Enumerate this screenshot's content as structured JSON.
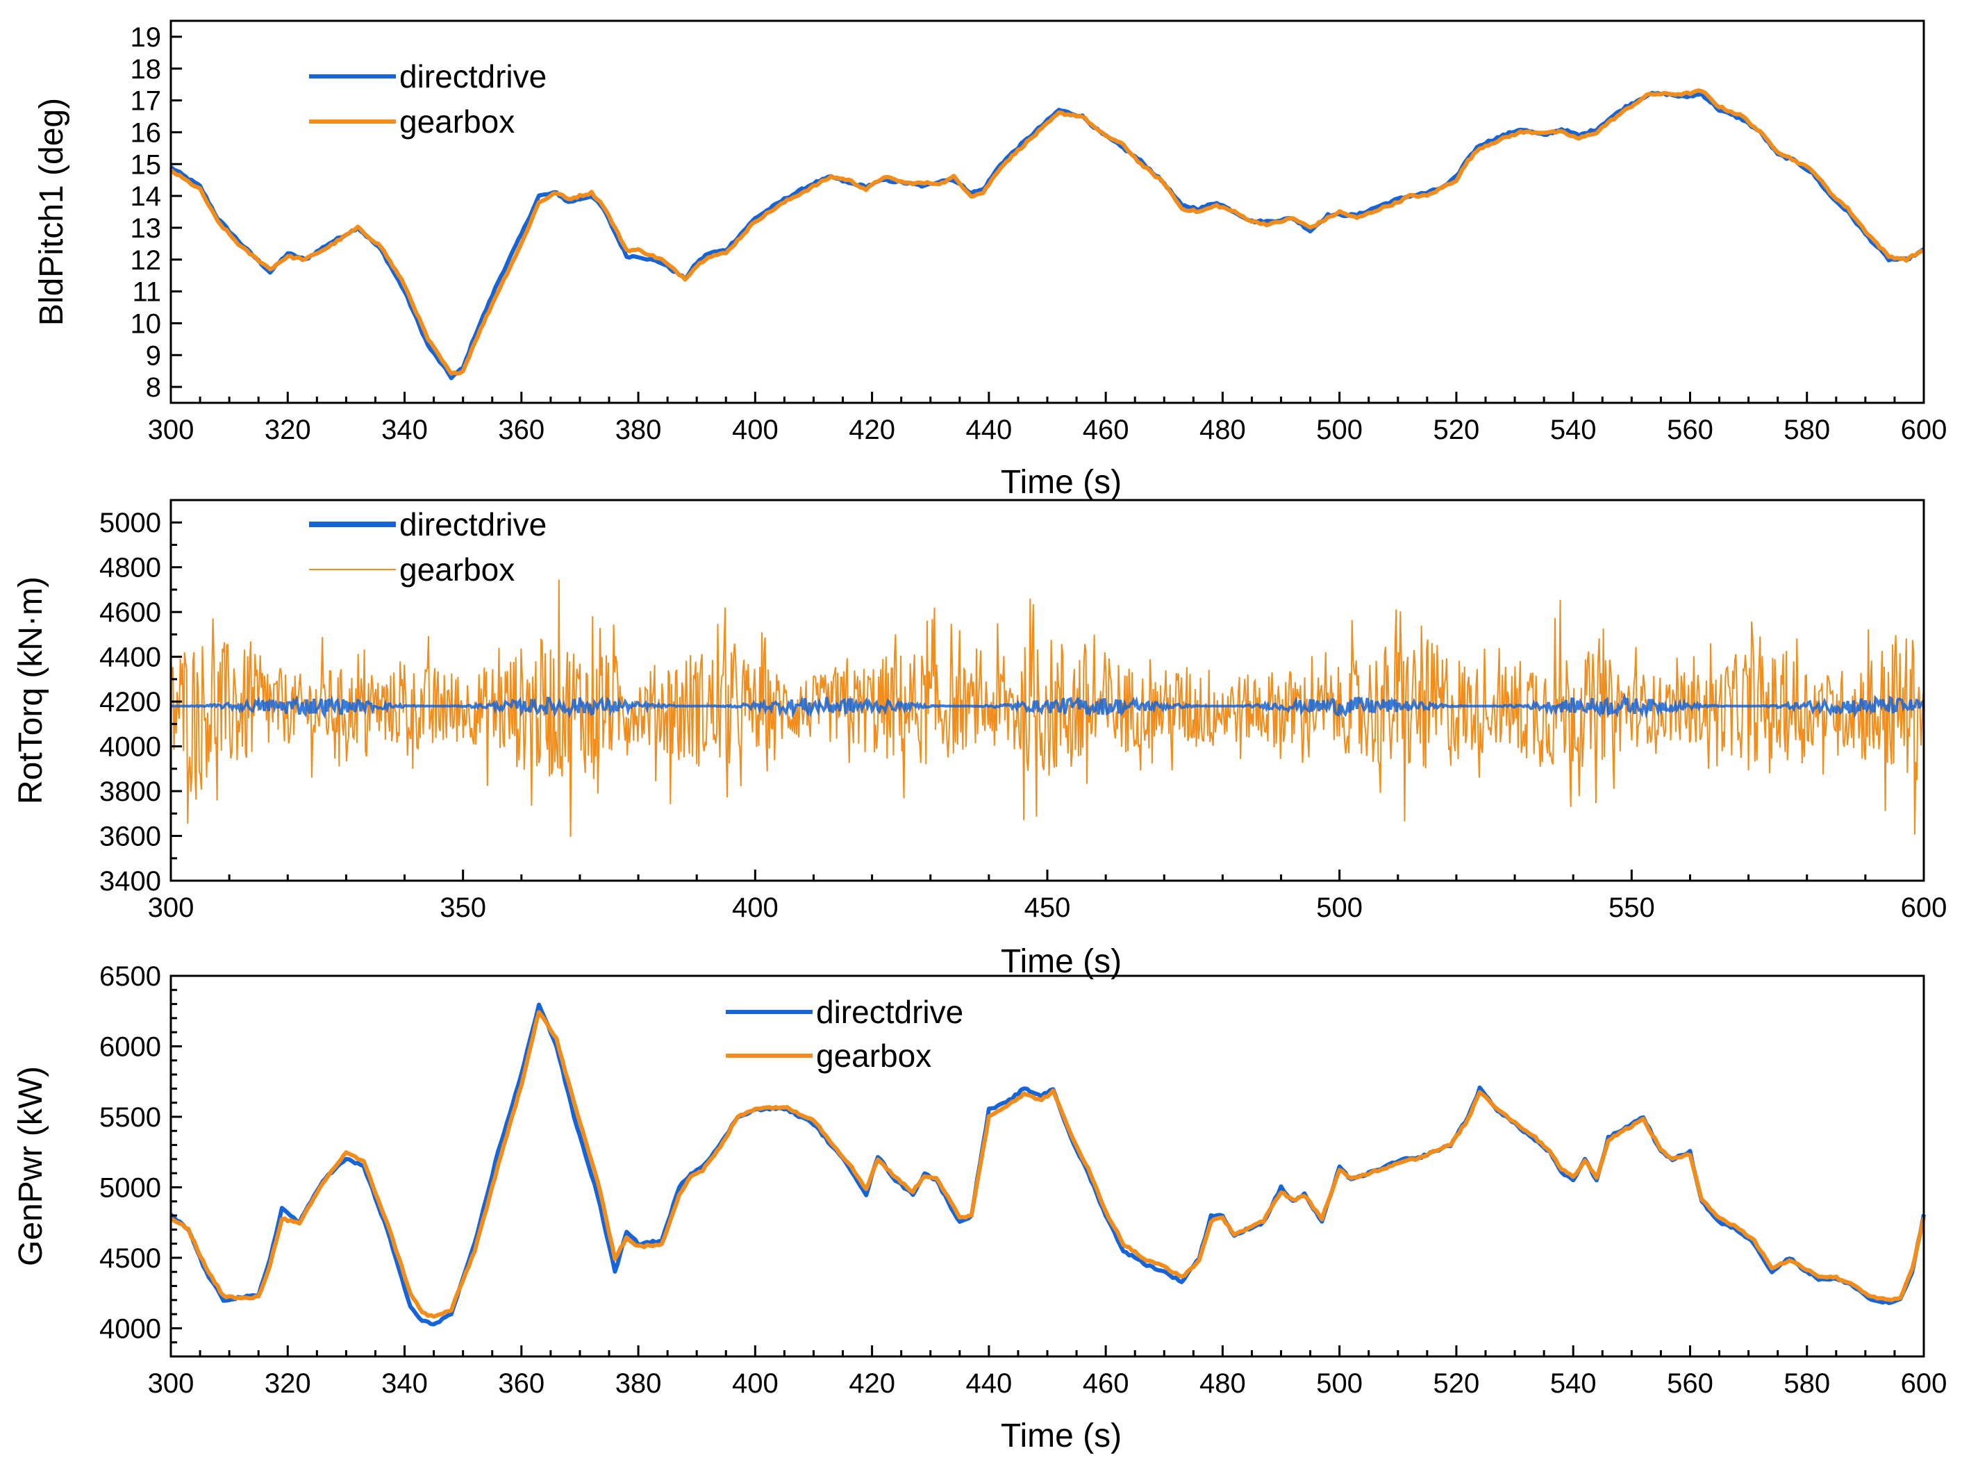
{
  "colors": {
    "directdrive": "#1565D8",
    "gearbox": "#F28C1A",
    "axis": "#000000"
  },
  "chart_data": [
    {
      "type": "line",
      "ylabel": "BldPitch1 (deg)",
      "xlabel": "Time (s)",
      "xlim": [
        300,
        600
      ],
      "ylim": [
        7.5,
        19.5
      ],
      "xticks": [
        300,
        320,
        340,
        360,
        380,
        400,
        420,
        440,
        460,
        480,
        500,
        520,
        540,
        560,
        580,
        600
      ],
      "xminor": 5,
      "yticks": [
        8,
        9,
        10,
        11,
        12,
        13,
        14,
        15,
        16,
        17,
        18,
        19
      ],
      "yminor": null,
      "legend": [
        "directdrive",
        "gearbox"
      ],
      "legend_position": "top-left",
      "series": [
        {
          "name": "directdrive",
          "x": [
            300,
            305,
            308,
            312,
            317,
            320,
            323,
            327,
            332,
            336,
            340,
            344,
            348,
            350,
            352,
            356,
            360,
            363,
            366,
            368,
            372,
            374,
            378,
            380,
            384,
            388,
            390,
            392,
            395,
            397,
            400,
            405,
            410,
            413,
            416,
            419,
            422,
            426,
            429,
            432,
            434,
            437,
            439,
            442,
            446,
            449,
            452,
            456,
            459,
            463,
            466,
            470,
            473,
            476,
            479,
            482,
            485,
            488,
            492,
            495,
            498,
            500,
            503,
            507,
            510,
            512,
            515,
            518,
            520,
            522,
            524,
            528,
            531,
            535,
            538,
            541,
            544,
            546,
            549,
            553,
            556,
            559,
            562,
            565,
            569,
            572,
            575,
            578,
            581,
            584,
            587,
            590,
            594,
            597,
            600
          ],
          "y": [
            14.9,
            14.3,
            13.3,
            12.5,
            11.6,
            12.2,
            12.0,
            12.5,
            13.0,
            12.3,
            11.0,
            9.3,
            8.3,
            8.6,
            9.6,
            11.3,
            12.8,
            14.0,
            14.1,
            13.8,
            14.0,
            13.6,
            12.1,
            12.1,
            11.9,
            11.4,
            11.9,
            12.2,
            12.3,
            12.7,
            13.3,
            13.9,
            14.4,
            14.6,
            14.4,
            14.3,
            14.5,
            14.4,
            14.3,
            14.5,
            14.5,
            14.1,
            14.2,
            15.0,
            15.7,
            16.2,
            16.7,
            16.5,
            16.0,
            15.5,
            15.1,
            14.4,
            13.7,
            13.6,
            13.8,
            13.5,
            13.2,
            13.2,
            13.3,
            12.9,
            13.4,
            13.4,
            13.4,
            13.7,
            13.9,
            14.0,
            14.1,
            14.3,
            14.6,
            15.2,
            15.6,
            15.9,
            16.1,
            15.9,
            16.1,
            15.9,
            16.1,
            16.4,
            16.8,
            17.2,
            17.2,
            17.1,
            17.2,
            16.7,
            16.4,
            16.0,
            15.3,
            15.1,
            14.7,
            14.0,
            13.5,
            12.8,
            12.0,
            12.0,
            12.3
          ]
        },
        {
          "name": "gearbox",
          "x": [
            300,
            305,
            308,
            312,
            317,
            320,
            323,
            327,
            332,
            336,
            340,
            344,
            348,
            350,
            352,
            356,
            360,
            363,
            366,
            368,
            372,
            374,
            378,
            380,
            384,
            388,
            390,
            392,
            395,
            397,
            400,
            405,
            410,
            413,
            416,
            419,
            422,
            426,
            429,
            432,
            434,
            437,
            439,
            442,
            446,
            449,
            452,
            456,
            459,
            463,
            466,
            470,
            473,
            476,
            479,
            482,
            485,
            488,
            492,
            495,
            498,
            500,
            503,
            507,
            510,
            512,
            515,
            518,
            520,
            522,
            524,
            528,
            531,
            535,
            538,
            541,
            544,
            546,
            549,
            553,
            556,
            559,
            562,
            565,
            569,
            572,
            575,
            578,
            581,
            584,
            587,
            590,
            594,
            597,
            600
          ],
          "y": [
            14.8,
            14.2,
            13.2,
            12.4,
            11.7,
            12.1,
            12.0,
            12.4,
            13.0,
            12.4,
            11.2,
            9.5,
            8.4,
            8.5,
            9.4,
            11.0,
            12.5,
            13.8,
            14.1,
            13.9,
            14.1,
            13.7,
            12.3,
            12.3,
            12.0,
            11.4,
            11.8,
            12.1,
            12.2,
            12.6,
            13.2,
            13.8,
            14.3,
            14.6,
            14.5,
            14.2,
            14.6,
            14.4,
            14.4,
            14.4,
            14.6,
            14.0,
            14.1,
            14.9,
            15.6,
            16.1,
            16.6,
            16.5,
            16.0,
            15.6,
            15.0,
            14.4,
            13.6,
            13.5,
            13.7,
            13.5,
            13.2,
            13.1,
            13.3,
            13.0,
            13.3,
            13.5,
            13.3,
            13.6,
            13.8,
            14.0,
            14.0,
            14.3,
            14.5,
            15.1,
            15.5,
            15.8,
            16.0,
            16.0,
            16.0,
            15.8,
            16.0,
            16.3,
            16.7,
            17.2,
            17.2,
            17.2,
            17.3,
            16.8,
            16.5,
            16.0,
            15.4,
            15.1,
            14.8,
            14.1,
            13.6,
            12.9,
            12.1,
            12.0,
            12.3
          ]
        }
      ]
    },
    {
      "type": "line",
      "ylabel": "RotTorq (kN·m)",
      "xlabel": "Time (s)",
      "xlim": [
        300,
        600
      ],
      "ylim": [
        3400,
        5100
      ],
      "xticks": [
        300,
        350,
        400,
        450,
        500,
        550,
        600
      ],
      "xminor": 10,
      "yticks": [
        3400,
        3600,
        3800,
        4000,
        4200,
        4400,
        4600,
        4800,
        5000
      ],
      "yminor": 100,
      "legend": [
        "directdrive",
        "gearbox"
      ],
      "legend_position": "top-left",
      "series": [
        {
          "name": "directdrive",
          "mean": 4180,
          "fluctuation": 40
        },
        {
          "name": "gearbox",
          "mean": 4170,
          "fluctuation": 600
        }
      ]
    },
    {
      "type": "line",
      "ylabel": "GenPwr (kW)",
      "xlabel": "Time (s)",
      "xlim": [
        300,
        600
      ],
      "ylim": [
        3800,
        6500
      ],
      "xticks": [
        300,
        320,
        340,
        360,
        380,
        400,
        420,
        440,
        460,
        480,
        500,
        520,
        540,
        560,
        580,
        600
      ],
      "xminor": 5,
      "yticks": [
        4000,
        4500,
        5000,
        5500,
        6000,
        6500
      ],
      "yminor": 100,
      "legend": [
        "directdrive",
        "gearbox"
      ],
      "legend_position": "top-center",
      "series": [
        {
          "name": "directdrive",
          "x": [
            300,
            303,
            306,
            309,
            312,
            315,
            317,
            319,
            322,
            326,
            330,
            333,
            337,
            341,
            343,
            345,
            348,
            352,
            356,
            360,
            363,
            366,
            369,
            373,
            376,
            378,
            380,
            384,
            387,
            389,
            391,
            394,
            397,
            400,
            405,
            410,
            413,
            416,
            419,
            421,
            424,
            427,
            429,
            431,
            433,
            435,
            437,
            440,
            443,
            446,
            449,
            451,
            454,
            457,
            460,
            463,
            467,
            470,
            473,
            476,
            478,
            480,
            482,
            484,
            487,
            490,
            492,
            494,
            497,
            500,
            502,
            505,
            508,
            511,
            513,
            516,
            519,
            522,
            524,
            527,
            530,
            533,
            536,
            538,
            540,
            542,
            544,
            546,
            548,
            552,
            555,
            557,
            560,
            562,
            565,
            568,
            571,
            574,
            577,
            580,
            582,
            585,
            588,
            591,
            594,
            596,
            598,
            600
          ],
          "y": [
            4800,
            4700,
            4400,
            4200,
            4220,
            4230,
            4500,
            4850,
            4750,
            5050,
            5200,
            5150,
            4700,
            4150,
            4050,
            4030,
            4100,
            4600,
            5250,
            5800,
            6300,
            6000,
            5500,
            4950,
            4400,
            4680,
            4600,
            4620,
            5000,
            5100,
            5150,
            5300,
            5500,
            5550,
            5560,
            5450,
            5300,
            5150,
            4950,
            5220,
            5050,
            4950,
            5100,
            5050,
            4900,
            4750,
            4800,
            5550,
            5600,
            5700,
            5650,
            5700,
            5350,
            5100,
            4800,
            4550,
            4450,
            4400,
            4330,
            4500,
            4800,
            4800,
            4650,
            4700,
            4750,
            5000,
            4900,
            4950,
            4750,
            5150,
            5050,
            5100,
            5150,
            5200,
            5200,
            5250,
            5300,
            5500,
            5700,
            5550,
            5450,
            5350,
            5250,
            5100,
            5050,
            5200,
            5050,
            5350,
            5400,
            5500,
            5250,
            5200,
            5250,
            4900,
            4750,
            4700,
            4600,
            4400,
            4500,
            4400,
            4350,
            4350,
            4300,
            4200,
            4180,
            4200,
            4400,
            4800
          ]
        },
        {
          "name": "gearbox",
          "x": [
            300,
            303,
            306,
            309,
            312,
            315,
            317,
            319,
            322,
            326,
            330,
            333,
            337,
            341,
            343,
            345,
            348,
            352,
            356,
            360,
            363,
            366,
            369,
            373,
            376,
            378,
            380,
            384,
            387,
            389,
            391,
            394,
            397,
            400,
            405,
            410,
            413,
            416,
            419,
            421,
            424,
            427,
            429,
            431,
            433,
            435,
            437,
            440,
            443,
            446,
            449,
            451,
            454,
            457,
            460,
            463,
            467,
            470,
            473,
            476,
            478,
            480,
            482,
            484,
            487,
            490,
            492,
            494,
            497,
            500,
            502,
            505,
            508,
            511,
            513,
            516,
            519,
            522,
            524,
            527,
            530,
            533,
            536,
            538,
            540,
            542,
            544,
            546,
            548,
            552,
            555,
            557,
            560,
            562,
            565,
            568,
            571,
            574,
            577,
            580,
            582,
            585,
            588,
            591,
            594,
            596,
            598,
            600
          ],
          "y": [
            4780,
            4700,
            4430,
            4230,
            4210,
            4220,
            4450,
            4780,
            4740,
            5030,
            5250,
            5180,
            4750,
            4250,
            4110,
            4080,
            4130,
            4550,
            5150,
            5730,
            6250,
            6050,
            5600,
            5050,
            4500,
            4640,
            4580,
            4590,
            4950,
            5080,
            5120,
            5280,
            5500,
            5560,
            5570,
            5480,
            5320,
            5170,
            4990,
            5200,
            5070,
            4970,
            5080,
            5070,
            4930,
            4780,
            4800,
            5500,
            5580,
            5660,
            5620,
            5680,
            5380,
            5130,
            4830,
            4600,
            4480,
            4440,
            4360,
            4480,
            4760,
            4780,
            4670,
            4700,
            4760,
            4970,
            4910,
            4940,
            4780,
            5120,
            5060,
            5100,
            5140,
            5190,
            5200,
            5250,
            5300,
            5480,
            5680,
            5560,
            5460,
            5370,
            5260,
            5130,
            5070,
            5190,
            5070,
            5330,
            5390,
            5480,
            5270,
            5200,
            5230,
            4920,
            4780,
            4720,
            4620,
            4430,
            4480,
            4420,
            4370,
            4360,
            4310,
            4220,
            4200,
            4210,
            4420,
            4780
          ]
        }
      ]
    }
  ]
}
